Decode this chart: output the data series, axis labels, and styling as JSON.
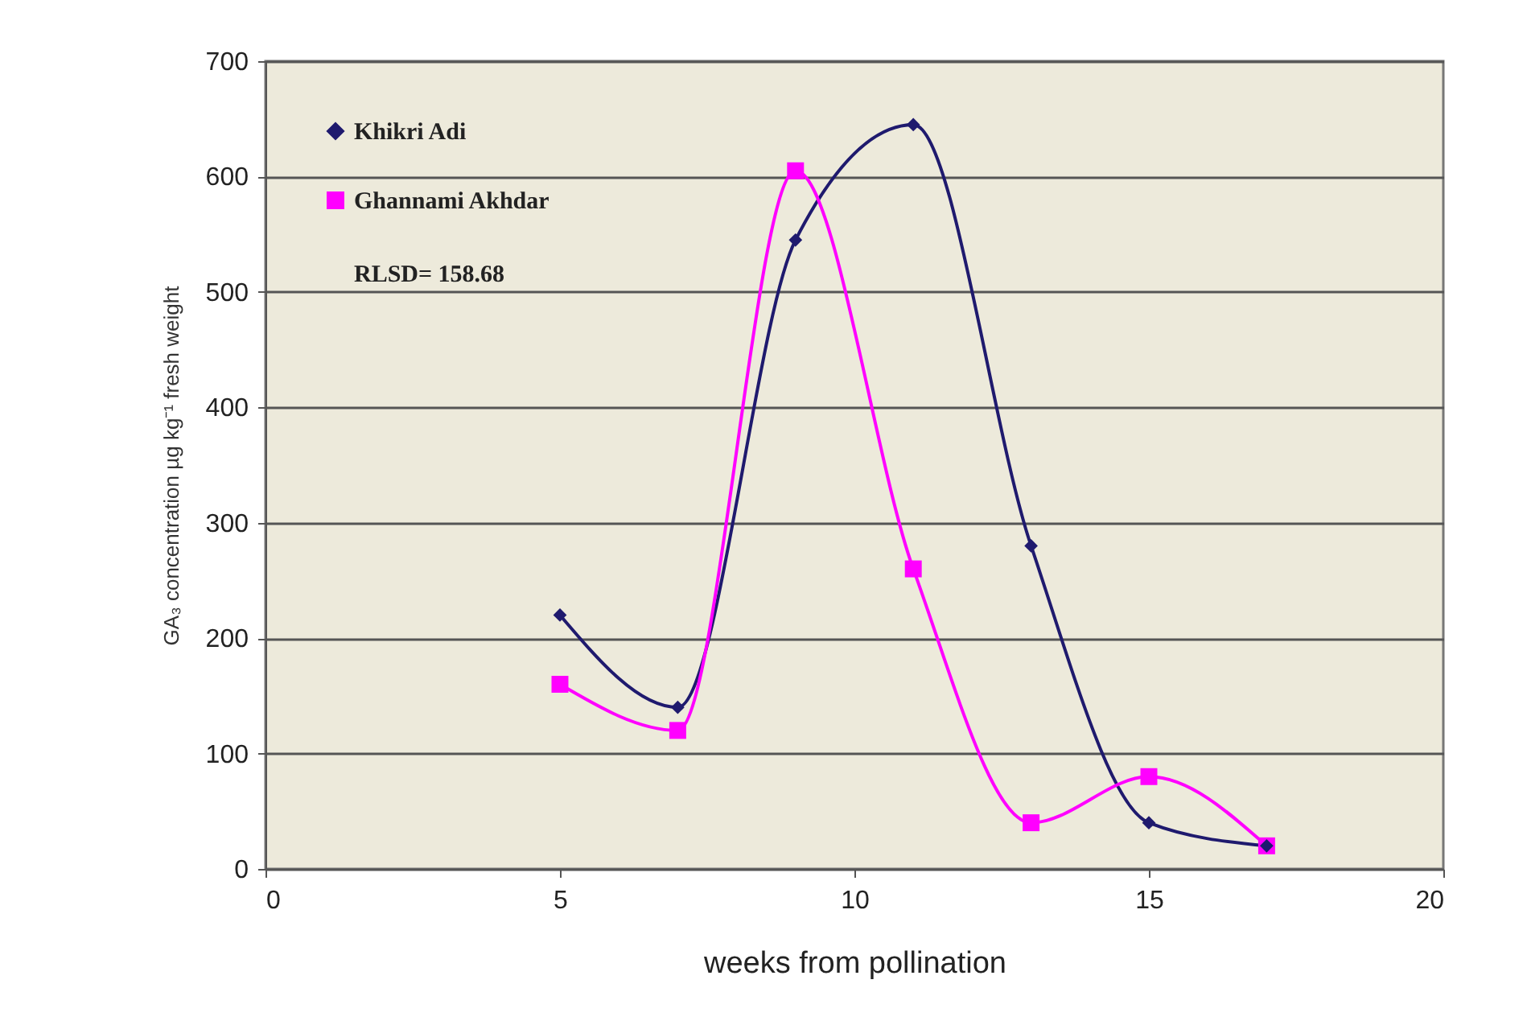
{
  "chart_data": {
    "type": "line",
    "xlabel": "weeks from  pollination",
    "ylabel": "GA₃ concentration µg kg⁻¹ fresh weight",
    "x": [
      5,
      7,
      9,
      11,
      13,
      15,
      17
    ],
    "series": [
      {
        "name": "Khikri Adi",
        "color": "#1f1a6e",
        "marker": "diamond",
        "values": [
          220,
          140,
          545,
          645,
          280,
          40,
          20
        ]
      },
      {
        "name": "Ghannami Akhdar",
        "color": "#ff00ff",
        "marker": "square",
        "values": [
          160,
          120,
          605,
          260,
          40,
          80,
          20
        ]
      }
    ],
    "xlim": [
      0,
      20
    ],
    "xticks": [
      0,
      5,
      10,
      15,
      20
    ],
    "ylim": [
      0,
      700
    ],
    "yticks": [
      0,
      100,
      200,
      300,
      400,
      500,
      600,
      700
    ],
    "grid": "y",
    "legend": "top left",
    "annotations": [
      "RLSD= 158.68"
    ]
  }
}
